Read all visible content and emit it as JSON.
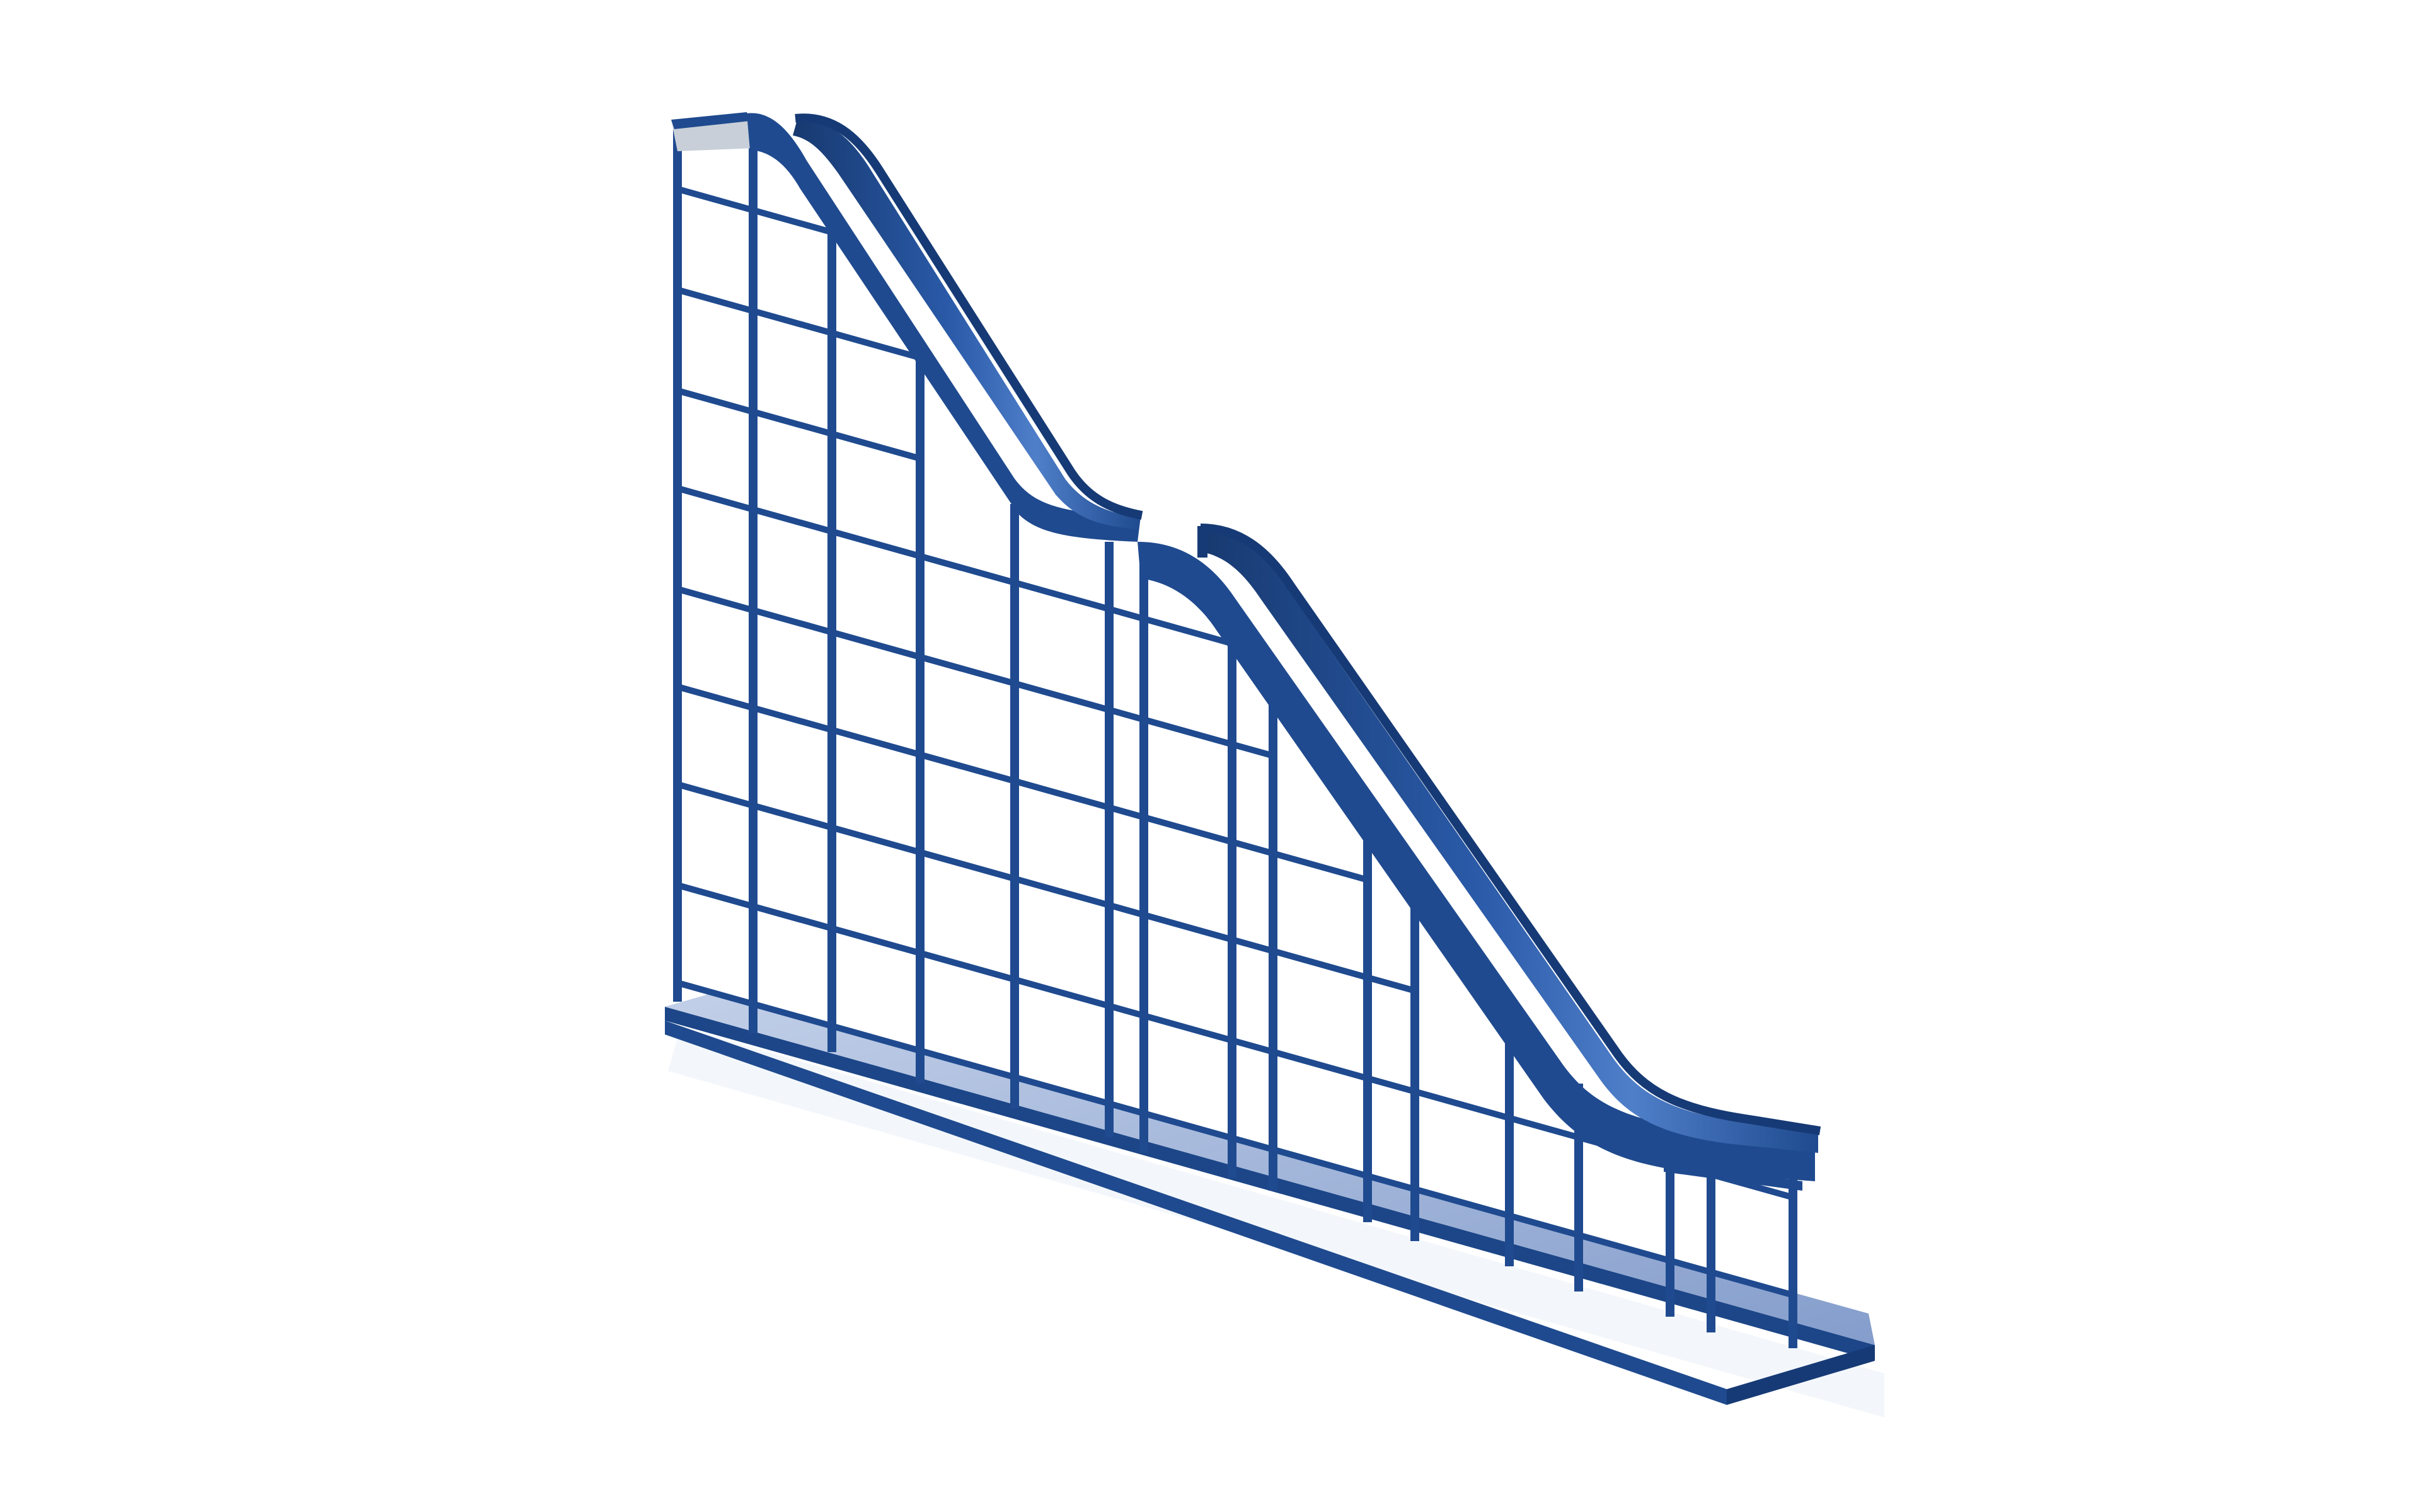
{
  "scene": {
    "subject": "blue-slide-tower",
    "colors": {
      "background": "#ffffff",
      "frame": "#1f4a8f",
      "frame_dark": "#163a75",
      "slide_surface": "#2a5aa8",
      "slide_highlight": "#4f7fc9",
      "slide_shadow": "#17396f",
      "base_plate": "#8fa6d2",
      "base_plate_edge": "#1c4688",
      "reflection": "#e7eef8",
      "top_cap": "#c8cfd8"
    }
  }
}
